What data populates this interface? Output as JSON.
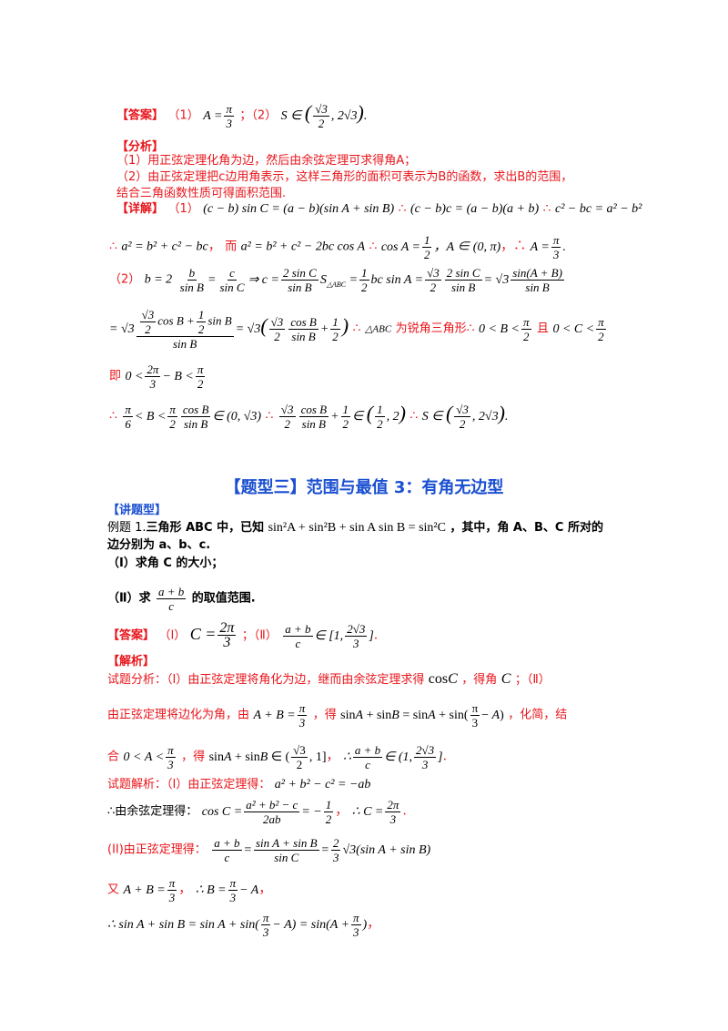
{
  "s1": {
    "answer_tag": "【答案】",
    "answer_p1": "（1）",
    "answer_p2": "；（2）",
    "analysis_tag": "【分析】",
    "analysis_l1": "（1）用正弦定理化角为边，然后由余弦定理可求得角A；",
    "analysis_l2": "（2）由正弦定理把c边用角表示，这样三角形的面积可表示为B的函数，求出B的范围，",
    "analysis_l3": "结合三角函数性质可得面积范围.",
    "detail_tag": "【详解】",
    "detail_p1": "（1）",
    "detail_er": "而",
    "detail_p2": "（2）",
    "detail_acute": "为锐角三角形",
    "detail_qie": "且",
    "detail_ji": "即"
  },
  "s2": {
    "section_title": "【题型三】范围与最值 3：有角无边型",
    "lecture_tag": "【讲题型】",
    "ex_prefix": "例题 1.",
    "ex_l1a": "三角形 ABC 中，已知",
    "ex_l1b": "，其中，角 A、B、C 所对的",
    "ex_l2": "边分别为 a、b、c.",
    "q1": "（Ⅰ）求角 C 的大小；",
    "q2a": "（Ⅱ）求",
    "q2b": "的取值范围.",
    "ans_tag": "【答案】",
    "ans_i": "（Ⅰ）",
    "ans_ii": "；（Ⅱ）",
    "jx_tag": "【解析】",
    "fx_l1a": "试题分析：（Ⅰ）由正弦定理将角化为边，继而由余弦定理求得",
    "fx_l1b": "，得角",
    "fx_l1c": "；（Ⅱ）",
    "fx_l2a": "由正弦定理将边化为角，由",
    "fx_l2b": "，得",
    "fx_l2c": "，化简，结",
    "fx_l3a": "合",
    "fx_l3b": "，得",
    "js_l1": "试题解析：（Ⅰ）由正弦定理得：",
    "js_l2": "∴由余弦定理得：",
    "js_l3": "(II)由正弦定理得：",
    "js_l4": "又"
  }
}
